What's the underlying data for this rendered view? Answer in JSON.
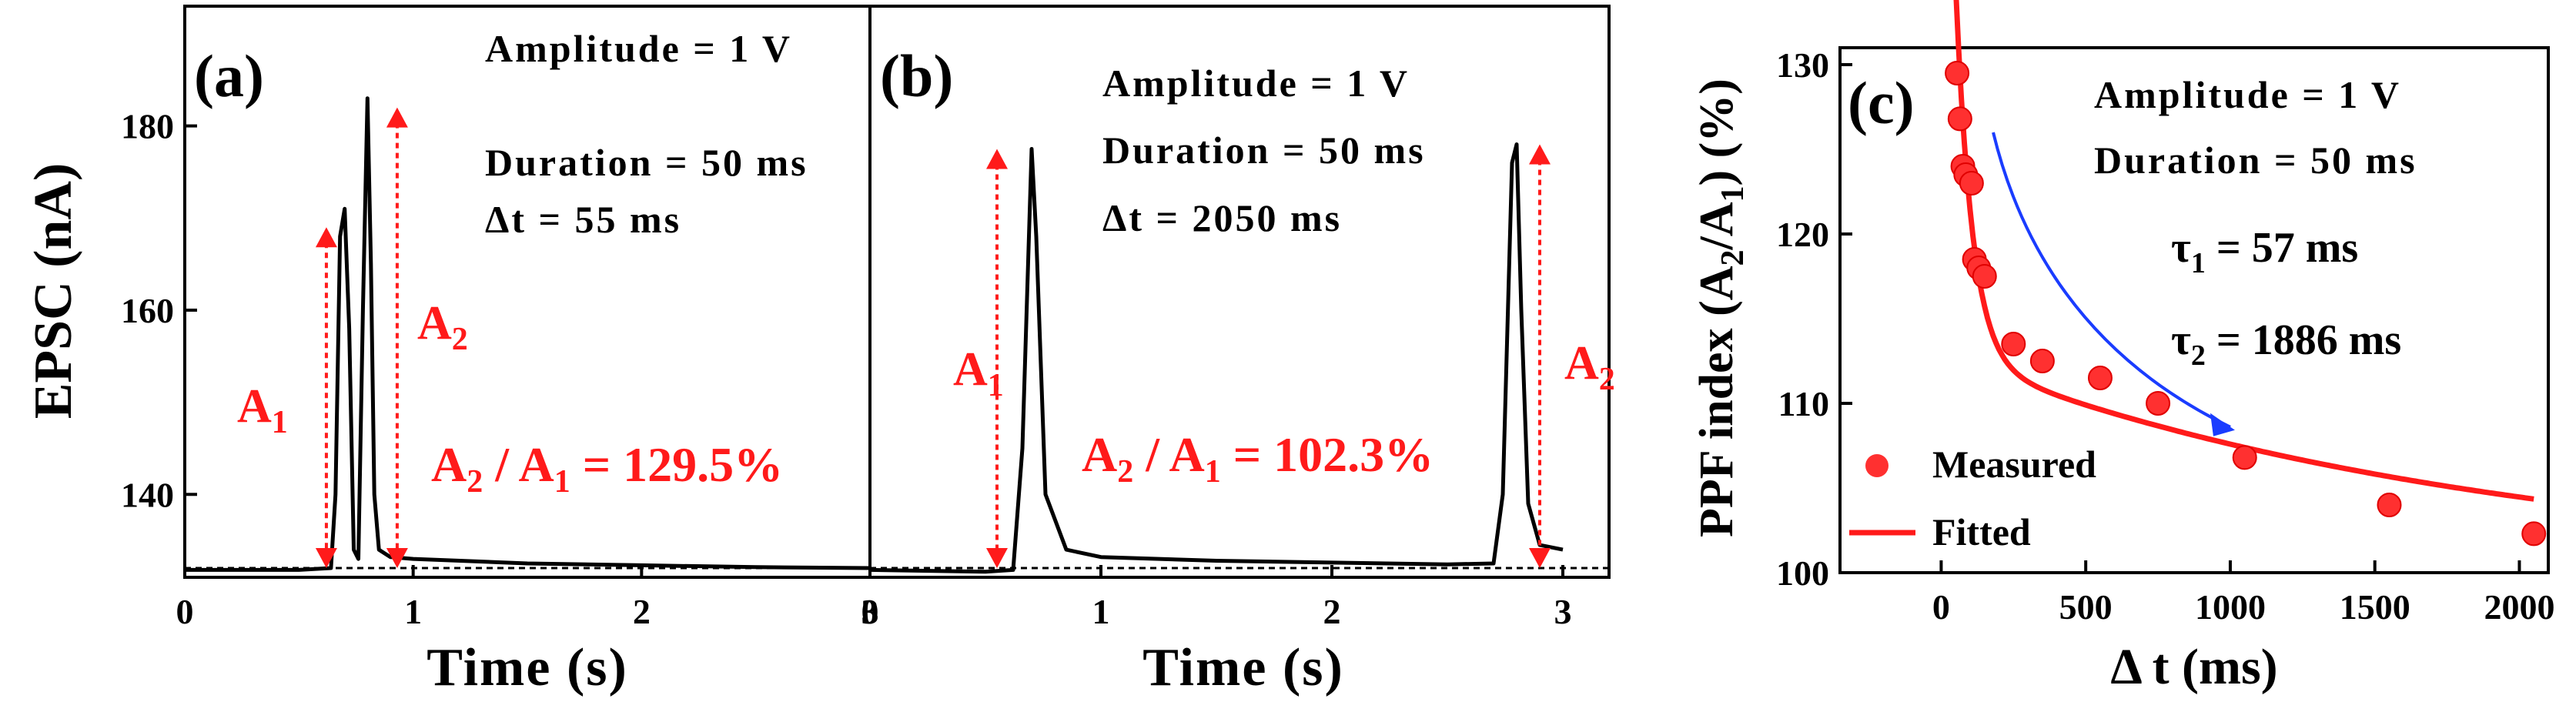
{
  "colors": {
    "trace": "#000000",
    "annotation": "#ff1a1a",
    "fit": "#ff1a1a",
    "marker": "#ff3030",
    "arrow": "#1a3cff"
  },
  "panels": {
    "a": {
      "label": "(a)",
      "info": [
        "Amplitude = 1 V",
        "Duration = 50 ms",
        "Δt = 55 ms"
      ],
      "ratio_label": {
        "prefix": "A",
        "sub2": "2",
        "mid": " / A",
        "sub1": "1",
        "suffix": " = 129.5%"
      },
      "a1": {
        "main": "A",
        "sub": "1"
      },
      "a2": {
        "main": "A",
        "sub": "2"
      }
    },
    "b": {
      "label": "(b)",
      "info": [
        "Amplitude = 1 V",
        "Duration = 50 ms",
        "Δt = 2050 ms"
      ],
      "ratio_label": {
        "prefix": "A",
        "sub2": "2",
        "mid": " / A",
        "sub1": "1",
        "suffix": " = 102.3%"
      },
      "a1": {
        "main": "A",
        "sub": "1"
      },
      "a2": {
        "main": "A",
        "sub": "2"
      }
    },
    "c": {
      "label": "(c)",
      "info": [
        "Amplitude = 1 V",
        "Duration = 50 ms"
      ],
      "tau1": {
        "main": "τ",
        "sub": "1",
        "rest": " = 57 ms"
      },
      "tau2": {
        "main": "τ",
        "sub": "2",
        "rest": " = 1886 ms"
      },
      "legend": [
        "Measured",
        "Fitted"
      ]
    }
  },
  "chart_data": [
    {
      "type": "line",
      "panel": "(a)",
      "xlabel": "Time (s)",
      "ylabel": "EPSC (nA)",
      "xlim": [
        0,
        3
      ],
      "ylim": [
        131,
        193
      ],
      "xticks": [
        0,
        1,
        2,
        3
      ],
      "yticks": [
        140,
        160,
        180
      ],
      "grid": false,
      "baseline": 132,
      "series": [
        {
          "x": [
            0,
            0.5,
            0.64,
            0.66,
            0.68,
            0.7,
            0.72,
            0.74,
            0.76,
            0.78,
            0.8,
            0.815,
            0.83,
            0.85,
            0.9,
            1.0,
            1.5,
            2.0,
            2.5,
            3.0
          ],
          "y": [
            131.8,
            131.8,
            132.0,
            140,
            168,
            171,
            158,
            134,
            133,
            160,
            183,
            165,
            140,
            134,
            133.2,
            133.0,
            132.5,
            132.3,
            132.1,
            132.0
          ]
        }
      ],
      "annotations": {
        "A1": [
          0.62,
          169
        ],
        "A2": [
          0.93,
          182
        ],
        "ratio": "129.5%"
      }
    },
    {
      "type": "line",
      "panel": "(b)",
      "xlabel": "Time (s)",
      "ylabel": "",
      "xlim": [
        0,
        3.2
      ],
      "ylim": [
        131,
        193
      ],
      "xticks": [
        0,
        1,
        2,
        3
      ],
      "grid": false,
      "baseline": 132,
      "series": [
        {
          "x": [
            0,
            0.5,
            0.62,
            0.66,
            0.7,
            0.72,
            0.76,
            0.85,
            1.0,
            1.5,
            2.0,
            2.5,
            2.7,
            2.74,
            2.78,
            2.8,
            2.82,
            2.85,
            2.9,
            3.0
          ],
          "y": [
            131.8,
            131.6,
            131.8,
            145,
            177.5,
            168,
            140,
            134,
            133.2,
            132.8,
            132.6,
            132.4,
            132.5,
            140,
            176,
            178,
            160,
            139,
            134.5,
            134
          ]
        }
      ],
      "annotations": {
        "A1": [
          0.55,
          177.5
        ],
        "A2": [
          2.9,
          178
        ],
        "ratio": "102.3%"
      }
    },
    {
      "type": "scatter",
      "panel": "(c)",
      "xlabel": "Δ t (ms)",
      "ylabel": "PPF index (A2/A1) (%)",
      "xlim": [
        -350,
        2100
      ],
      "ylim": [
        100,
        131
      ],
      "xticks": [
        0,
        500,
        1000,
        1500,
        2000
      ],
      "yticks": [
        100,
        110,
        120,
        130
      ],
      "grid": false,
      "legend": "bottom-left",
      "series": [
        {
          "name": "Measured",
          "x": [
            55,
            65,
            75,
            85,
            105,
            115,
            130,
            150,
            250,
            350,
            550,
            750,
            1050,
            1550,
            2050
          ],
          "y": [
            129.5,
            126.8,
            124,
            123.5,
            123,
            118.5,
            118,
            117.5,
            113.5,
            112.5,
            111.5,
            110,
            106.8,
            104,
            102.3
          ]
        },
        {
          "name": "Fitted",
          "tau1": 57,
          "tau2": 1886
        }
      ]
    }
  ]
}
